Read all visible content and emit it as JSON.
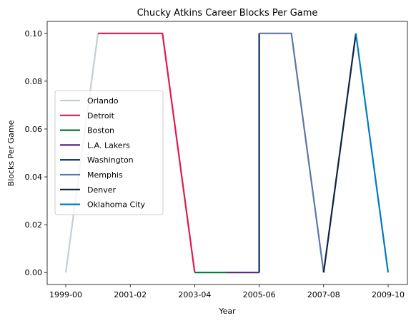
{
  "chart_data": {
    "type": "line",
    "title": "Chucky Atkins Career Blocks Per Game",
    "xlabel": "Year",
    "ylabel": "Blocks Per Game",
    "x": [
      "1999-00",
      "2000-01",
      "2001-02",
      "2002-03",
      "2003-04",
      "2004-05",
      "2005-06",
      "2006-07",
      "2007-08",
      "2008-09",
      "2009-10"
    ],
    "xticks": [
      "1999-00",
      "2001-02",
      "2003-04",
      "2005-06",
      "2007-08",
      "2009-10"
    ],
    "yticks": [
      "0.00",
      "0.02",
      "0.04",
      "0.06",
      "0.08",
      "0.10"
    ],
    "ylim": [
      -0.005,
      0.105
    ],
    "grid": false,
    "legend_position": "center-left",
    "series": [
      {
        "name": "Orlando",
        "color": "#c4ced4",
        "points": [
          [
            "1999-00",
            0.0
          ],
          [
            "2000-01",
            0.1
          ]
        ]
      },
      {
        "name": "Detroit",
        "color": "#e0194f",
        "points": [
          [
            "2000-01",
            0.1
          ],
          [
            "2001-02",
            0.1
          ],
          [
            "2002-03",
            0.1
          ],
          [
            "2003-04",
            0.0
          ]
        ]
      },
      {
        "name": "Boston",
        "color": "#007a33",
        "points": [
          [
            "2003-04",
            0.0
          ],
          [
            "2004-05",
            0.0
          ]
        ]
      },
      {
        "name": "L.A. Lakers",
        "color": "#552583",
        "points": [
          [
            "2004-05",
            0.0
          ],
          [
            "2005-06",
            0.0
          ]
        ]
      },
      {
        "name": "Washington",
        "color": "#002b5c",
        "points": [
          [
            "2005-06",
            0.0
          ],
          [
            "2005-06",
            0.1
          ]
        ]
      },
      {
        "name": "Memphis",
        "color": "#5d76a9",
        "points": [
          [
            "2005-06",
            0.1
          ],
          [
            "2006-07",
            0.1
          ],
          [
            "2007-08",
            0.0
          ]
        ]
      },
      {
        "name": "Denver",
        "color": "#0e2240",
        "points": [
          [
            "2007-08",
            0.0
          ],
          [
            "2008-09",
            0.1
          ]
        ]
      },
      {
        "name": "Oklahoma City",
        "color": "#007ac1",
        "points": [
          [
            "2008-09",
            0.1
          ],
          [
            "2009-10",
            0.0
          ]
        ]
      }
    ]
  }
}
